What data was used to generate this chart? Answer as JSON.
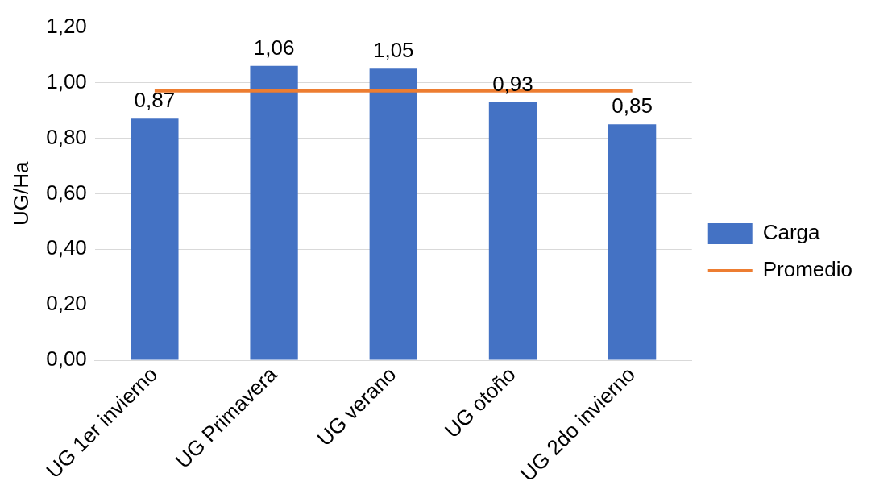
{
  "chart_data": {
    "type": "bar",
    "ylabel": "UG/Ha",
    "categories": [
      "UG 1er invierno",
      "UG Primavera",
      "UG verano",
      "UG otoño",
      "UG 2do invierno"
    ],
    "series": [
      {
        "name": "Carga",
        "color": "#4472c4",
        "values": [
          0.87,
          1.06,
          1.05,
          0.93,
          0.85
        ],
        "value_labels": [
          "0,87",
          "1,06",
          "1,05",
          "0,93",
          "0,85"
        ]
      },
      {
        "name": "Promedio",
        "type": "line",
        "color": "#ed7d31",
        "values": [
          0.97,
          0.97,
          0.97,
          0.97,
          0.97
        ]
      }
    ],
    "ylim": [
      0,
      1.2
    ],
    "yticks": [
      {
        "value": 0,
        "label": "0,00"
      },
      {
        "value": 0.2,
        "label": "0,20"
      },
      {
        "value": 0.4,
        "label": "0,40"
      },
      {
        "value": 0.6,
        "label": "0,60"
      },
      {
        "value": 0.8,
        "label": "0,80"
      },
      {
        "value": 1,
        "label": "1,00"
      },
      {
        "value": 1.2,
        "label": "1,20"
      }
    ],
    "grid": "y",
    "legend": "right",
    "marker": "none"
  }
}
